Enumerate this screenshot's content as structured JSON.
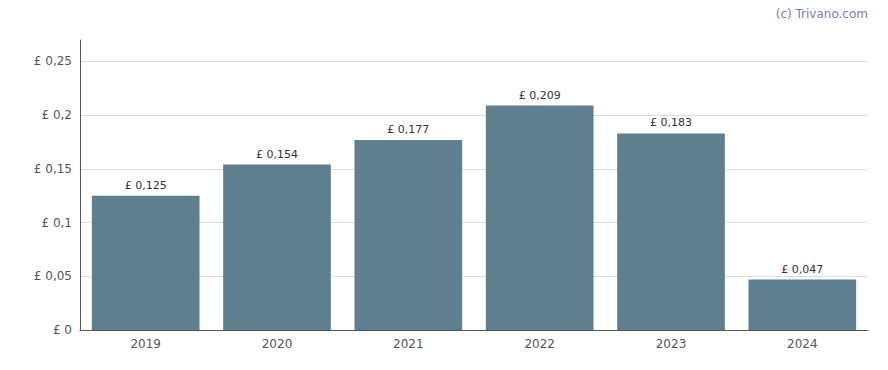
{
  "chart_data": {
    "type": "bar",
    "categories": [
      "2019",
      "2020",
      "2021",
      "2022",
      "2023",
      "2024"
    ],
    "values": [
      0.125,
      0.154,
      0.177,
      0.209,
      0.183,
      0.047
    ],
    "value_labels": [
      "£ 0,125",
      "£ 0,154",
      "£ 0,177",
      "£ 0,209",
      "£ 0,183",
      "£ 0,047"
    ],
    "data_labels": true,
    "color": "#5f7f8f",
    "ylim": [
      0,
      0.27
    ],
    "yticks": [
      {
        "value": 0,
        "label": "£ 0"
      },
      {
        "value": 0.05,
        "label": "£ 0,05"
      },
      {
        "value": 0.1,
        "label": "£ 0,1"
      },
      {
        "value": 0.15,
        "label": "£ 0,15"
      },
      {
        "value": 0.2,
        "label": "£ 0,2"
      },
      {
        "value": 0.25,
        "label": "£ 0,25"
      }
    ],
    "grid": true,
    "annotations": [
      {
        "text": "(c) Trivano.com",
        "color": "#7b7bc8"
      }
    ]
  }
}
